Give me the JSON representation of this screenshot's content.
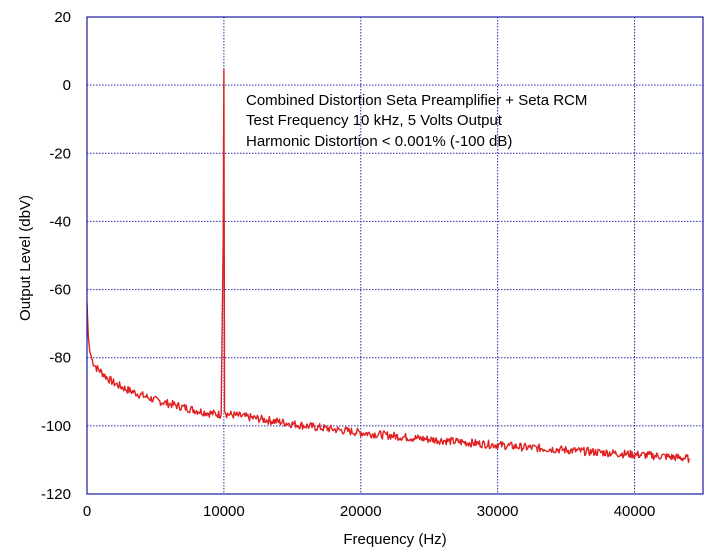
{
  "chart_data": {
    "type": "line",
    "title": "",
    "xlabel": "Frequency (Hz)",
    "ylabel": "Output Level (dbV)",
    "xlim": [
      0,
      45000
    ],
    "ylim": [
      -120,
      20
    ],
    "x_ticks": [
      0,
      10000,
      20000,
      30000,
      40000
    ],
    "y_ticks": [
      20,
      0,
      -20,
      -40,
      -60,
      -80,
      -100,
      -120
    ],
    "x_tick_labels": [
      "0",
      "10000",
      "20000",
      "30000",
      "40000"
    ],
    "y_tick_labels": [
      "20",
      "0",
      "-20",
      "-40",
      "-60",
      "-80",
      "-100",
      "-120"
    ],
    "grid": true,
    "grid_style": "dotted",
    "legend": "none",
    "annotations": [
      "Combined Distortion Seta Preamplifier + Seta RCM",
      "Test Frequency 10 kHz, 5 Volts Output",
      "Harmonic Distortion < 0.001% (-100 dB)"
    ],
    "colors": {
      "series": "#e02020",
      "grid": "#2a2aa8",
      "axis": "#1a1aa0"
    },
    "series": [
      {
        "x": [
          0,
          100,
          200,
          400,
          700,
          1000,
          1500,
          2000,
          3000,
          4000,
          5000,
          6000,
          7000,
          8000,
          9000,
          9800,
          9950,
          10000,
          10050,
          10200,
          11000,
          12000,
          13000,
          14000,
          15000,
          16000,
          17000,
          18000,
          19000,
          20000,
          22000,
          24000,
          26000,
          28000,
          30000,
          32000,
          34000,
          36000,
          38000,
          40000,
          42000,
          44000
        ],
        "y": [
          -64,
          -74,
          -78,
          -81,
          -83,
          -84,
          -86,
          -87.5,
          -89.5,
          -91,
          -92.5,
          -93.5,
          -94.5,
          -95.5,
          -96.3,
          -96.7,
          -45,
          4.5,
          -95,
          -96.5,
          -97,
          -97.6,
          -98.2,
          -98.8,
          -99.4,
          -100,
          -100.5,
          -101,
          -101.5,
          -102,
          -102.8,
          -103.6,
          -104.3,
          -105,
          -105.6,
          -106.3,
          -106.8,
          -107.4,
          -107.9,
          -108.4,
          -108.9,
          -109.6
        ]
      }
    ]
  }
}
